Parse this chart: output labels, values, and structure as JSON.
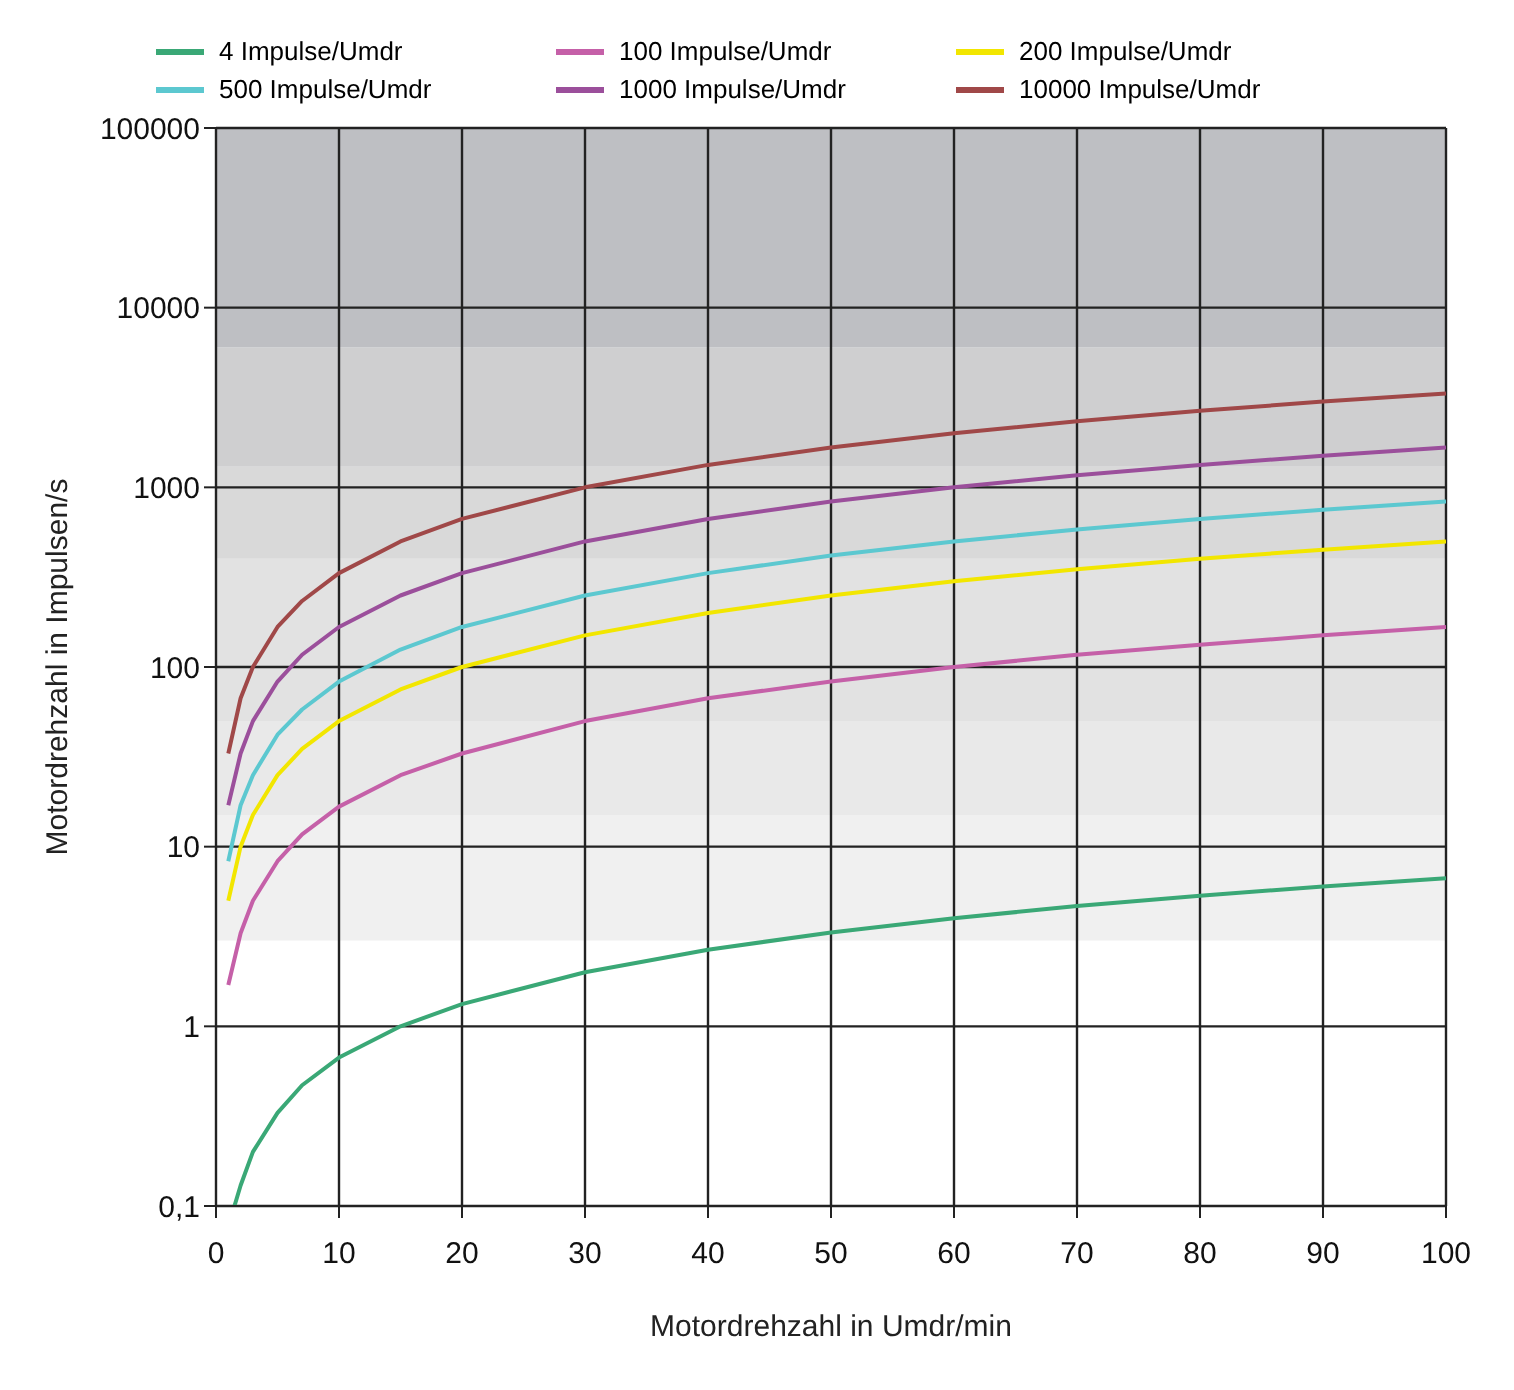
{
  "chart_data": {
    "type": "line",
    "xlabel": "Motordrehzahl in Umdr/min",
    "ylabel": "Motordrehzahl in Impulsen/s",
    "log": "y",
    "grid": true,
    "legend": "top",
    "marker": "none",
    "line_style": "solid",
    "xlim": [
      0,
      100
    ],
    "xticks": [
      0,
      10,
      20,
      30,
      40,
      50,
      60,
      70,
      80,
      90,
      100
    ],
    "ylim": [
      0.1,
      100000
    ],
    "yticks": [
      {
        "value": 0.1,
        "label": "0,1"
      },
      1,
      10,
      100,
      1000,
      10000,
      100000
    ],
    "bands": [
      {
        "axis": "y",
        "from": 3,
        "to": 15,
        "color": "#f0f0f0"
      },
      {
        "axis": "y",
        "from": 15,
        "to": 50,
        "color": "#e9e9e9"
      },
      {
        "axis": "y",
        "from": 50,
        "to": 400,
        "color": "#e2e2e2"
      },
      {
        "axis": "y",
        "from": 400,
        "to": 1300,
        "color": "#d9d9d9"
      },
      {
        "axis": "y",
        "from": 1300,
        "to": 6000,
        "color": "#cfcfd0"
      },
      {
        "axis": "y",
        "from": 6000,
        "to": 100000,
        "color": "#bebfc3"
      }
    ],
    "series": [
      {
        "name": "4 Impulse/Umdr",
        "color": "#3aa876",
        "x": [
          1.5,
          2,
          3,
          5,
          7,
          10,
          15,
          20,
          30,
          40,
          50,
          60,
          70,
          80,
          90,
          100
        ],
        "values": [
          0.1,
          0.13,
          0.2,
          0.33,
          0.47,
          0.67,
          1,
          1.33,
          2,
          2.67,
          3.33,
          4,
          4.67,
          5.33,
          6,
          6.67
        ]
      },
      {
        "name": "100 Impulse/Umdr",
        "color": "#c560a8",
        "x": [
          1,
          2,
          3,
          5,
          7,
          10,
          15,
          20,
          30,
          40,
          50,
          60,
          70,
          80,
          90,
          100
        ],
        "values": [
          1.7,
          3.3,
          5,
          8.3,
          11.7,
          16.7,
          25,
          33,
          50,
          67,
          83,
          100,
          117,
          133,
          150,
          167
        ]
      },
      {
        "name": "200 Impulse/Umdr",
        "color": "#f2e600",
        "x": [
          1,
          2,
          3,
          5,
          7,
          10,
          15,
          20,
          30,
          40,
          50,
          60,
          70,
          80,
          90,
          100
        ],
        "values": [
          5,
          10,
          15,
          25,
          35,
          50,
          75,
          100,
          150,
          200,
          250,
          300,
          350,
          400,
          450,
          500
        ]
      },
      {
        "name": "500 Impulse/Umdr",
        "color": "#5cc8d0",
        "x": [
          1,
          2,
          3,
          5,
          7,
          10,
          15,
          20,
          30,
          40,
          50,
          60,
          70,
          80,
          90,
          100
        ],
        "values": [
          8.3,
          17,
          25,
          42,
          58,
          83,
          125,
          167,
          250,
          333,
          417,
          500,
          583,
          667,
          750,
          833
        ]
      },
      {
        "name": "1000 Impulse/Umdr",
        "color": "#9b4f9b",
        "x": [
          1,
          2,
          3,
          5,
          7,
          10,
          15,
          20,
          30,
          40,
          50,
          60,
          70,
          80,
          90,
          100
        ],
        "values": [
          17,
          33,
          50,
          83,
          117,
          167,
          250,
          333,
          500,
          667,
          833,
          1000,
          1167,
          1333,
          1500,
          1667
        ]
      },
      {
        "name": "10000 Impulse/Umdr",
        "color": "#a04848",
        "x": [
          1,
          2,
          3,
          5,
          7,
          10,
          15,
          20,
          30,
          40,
          50,
          60,
          70,
          80,
          90,
          100
        ],
        "values": [
          33,
          67,
          100,
          167,
          233,
          333,
          500,
          667,
          1000,
          1333,
          1667,
          2000,
          2333,
          2667,
          3000,
          3333
        ]
      }
    ]
  }
}
